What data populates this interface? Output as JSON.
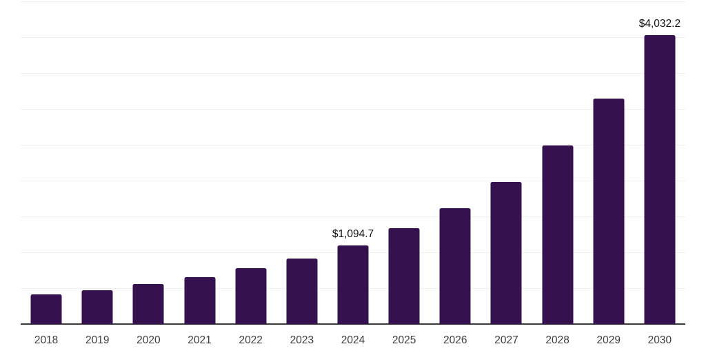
{
  "chart_data": {
    "type": "bar",
    "title": "",
    "xlabel": "",
    "ylabel": "",
    "categories": [
      "2018",
      "2019",
      "2020",
      "2021",
      "2022",
      "2023",
      "2024",
      "2025",
      "2026",
      "2027",
      "2028",
      "2029",
      "2030"
    ],
    "values": [
      415,
      475,
      555,
      655,
      775,
      910,
      1094.7,
      1335,
      1615,
      1985,
      2490,
      3140,
      4032.2
    ],
    "value_labels": {
      "2024": "$1,094.7",
      "2030": "$4,032.2"
    },
    "ylim": [
      0,
      4500
    ],
    "grid_step": 500,
    "grid": "horizontal",
    "legend_position": "none",
    "colors": {
      "bar": "#351150",
      "gridline": "#f0f0f0",
      "axis_line": "#3a3a3a",
      "tick_label": "#3d3d3d",
      "data_label": "#111111",
      "background": "#ffffff"
    }
  }
}
